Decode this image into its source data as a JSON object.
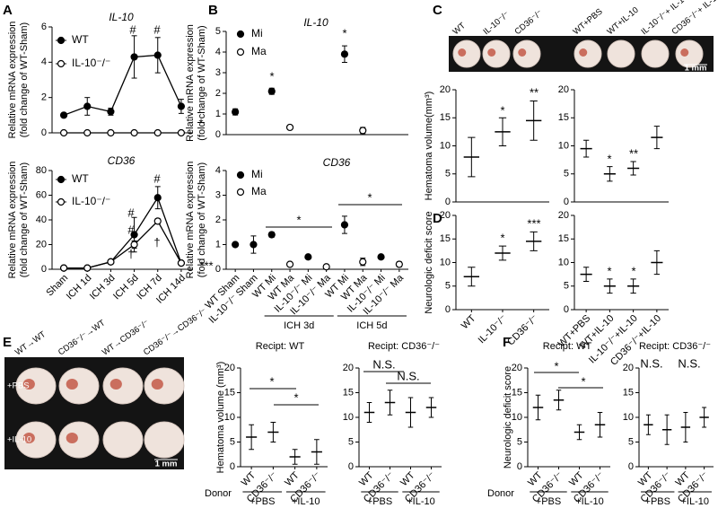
{
  "panels": [
    "A",
    "B",
    "C",
    "D",
    "E",
    "F"
  ],
  "images": [
    {
      "labels": [
        "WT",
        "IL-10⁻/⁻",
        "CD36⁻/⁻",
        "WT+PBS",
        "WT+IL-10",
        "IL-10⁻/⁻+ IL-10",
        "CD36⁻/⁻+ IL-10"
      ],
      "scale": "1 mm"
    },
    {
      "labels": [
        "WT→WT",
        "CD36⁻/⁻→WT",
        "WT→CD36⁻/⁻",
        "CD36⁻/⁻→CD36⁻/⁻"
      ],
      "rows": [
        "+PBS",
        "+IL-10"
      ],
      "scale": "1 mm"
    }
  ],
  "chart_data": [
    {
      "type": "line",
      "title": "IL-10",
      "ylabel": [
        "Relative mRNA expression",
        "(fold change of WT-Sham)"
      ],
      "categories": [
        null,
        null,
        null,
        null,
        null,
        null
      ],
      "ylim": [
        0,
        6
      ],
      "yticks": [
        0,
        2,
        4,
        6
      ],
      "legend": true,
      "series": [
        {
          "name": "WT",
          "marker": "filled",
          "color": "#000000",
          "values": [
            1,
            1.5,
            1.2,
            4.3,
            4.4,
            1.5
          ],
          "errors": [
            0.1,
            0.5,
            0.2,
            1.2,
            1.0,
            0.4
          ]
        },
        {
          "name": "IL-10⁻/⁻",
          "marker": "open",
          "color": "#000000",
          "values": [
            0,
            0,
            0,
            0,
            0,
            0
          ],
          "errors": [
            0,
            0,
            0,
            0,
            0,
            0
          ]
        }
      ],
      "annotations": [
        "#",
        "#",
        "*"
      ]
    },
    {
      "type": "line",
      "title": "CD36",
      "ylabel": [
        "Relative mRNA expression",
        "(fold change of WT-Sham)"
      ],
      "categories": [
        "Sham",
        "ICH 1d",
        "ICH 3d",
        "ICH 5d",
        "ICH 7d",
        "ICH 14d"
      ],
      "ylim": [
        0,
        80
      ],
      "yticks": [
        0,
        20,
        40,
        60,
        80
      ],
      "legend": true,
      "series": [
        {
          "name": "WT",
          "marker": "filled",
          "color": "#000000",
          "values": [
            1,
            1,
            6,
            28,
            58,
            5
          ],
          "errors": [
            0.3,
            0.5,
            1,
            14,
            9,
            1
          ]
        },
        {
          "name": "IL-10⁻/⁻",
          "marker": "open",
          "color": "#000000",
          "values": [
            1,
            1,
            6,
            20,
            39,
            5
          ],
          "errors": [
            0.3,
            0.3,
            1,
            3,
            2,
            1
          ]
        }
      ],
      "annotations": [
        "#",
        "#",
        "#",
        "†",
        "†",
        "***"
      ]
    },
    {
      "type": "dot",
      "title": "IL-10",
      "ylabel": [
        "Relative mRNA expression",
        "(fold change of WT-Sham)"
      ],
      "categories": [
        null,
        null,
        null,
        null,
        null,
        null,
        null,
        null,
        null,
        null
      ],
      "ylim": [
        0,
        5
      ],
      "yticks": [
        0,
        1,
        2,
        3,
        4,
        5
      ],
      "legend": true,
      "series": [
        {
          "name": "Mi",
          "marker": "filled",
          "color": "#000000",
          "values": [
            1.1,
            null,
            2.1,
            null,
            null,
            null,
            3.9,
            null,
            null,
            null
          ],
          "errors": [
            0.15,
            null,
            0.15,
            null,
            null,
            null,
            0.4,
            null,
            null,
            null
          ]
        },
        {
          "name": "Ma",
          "marker": "open",
          "color": "#000000",
          "values": [
            null,
            null,
            null,
            0.35,
            null,
            null,
            null,
            0.2,
            null,
            null
          ],
          "errors": [
            null,
            null,
            null,
            0.05,
            null,
            null,
            null,
            0.15,
            null,
            null
          ]
        }
      ],
      "annotations": [
        "*",
        "*"
      ]
    },
    {
      "type": "dot",
      "title": "CD36",
      "ylabel": [
        "Relative mRNA expression",
        "(fold change of WT-Sham)"
      ],
      "categories": [
        "WT Sham",
        "IL-10⁻/⁻ Sham",
        "WT Mi",
        "WT Ma",
        "IL-10⁻/⁻ Mi",
        "IL-10⁻/⁻ Ma",
        "WT Mi",
        "WT Ma",
        "IL-10⁻/⁻ Mi",
        "IL-10⁻/⁻ Ma"
      ],
      "groups": [
        "ICH 3d",
        "ICH 5d"
      ],
      "ylim": [
        0,
        4
      ],
      "yticks": [
        0,
        1,
        2,
        3,
        4
      ],
      "legend": true,
      "series": [
        {
          "name": "Mi",
          "marker": "filled",
          "color": "#000000",
          "values": [
            1.0,
            1.0,
            1.4,
            null,
            0.5,
            null,
            1.8,
            null,
            0.5,
            null
          ],
          "errors": [
            0.05,
            0.35,
            0.1,
            null,
            0.05,
            null,
            0.35,
            null,
            0.05,
            null
          ]
        },
        {
          "name": "Ma",
          "marker": "open",
          "color": "#000000",
          "values": [
            null,
            null,
            null,
            0.2,
            null,
            0.1,
            null,
            0.3,
            null,
            0.2
          ],
          "errors": [
            null,
            null,
            null,
            0.05,
            null,
            0.05,
            null,
            0.15,
            null,
            0.1
          ]
        }
      ],
      "annotations": [
        "*",
        "*"
      ]
    },
    {
      "type": "dot",
      "ylabel": "Hematoma volume(mm³)",
      "categories": [
        null,
        null,
        null
      ],
      "ylim": [
        0,
        20
      ],
      "yticks": [
        0,
        5,
        10,
        15,
        20
      ],
      "series": [
        {
          "color": "#000000",
          "values": [
            8,
            12.5,
            14.5
          ],
          "errors": [
            3.5,
            2.5,
            3.5
          ]
        }
      ],
      "annotations": [
        "*",
        "**"
      ]
    },
    {
      "type": "dot",
      "categories": [
        null,
        null,
        null,
        null
      ],
      "ylim": [
        0,
        20
      ],
      "yticks": [
        0,
        5,
        10,
        15,
        20
      ],
      "series": [
        {
          "color": "#000000",
          "values": [
            9.5,
            5,
            6,
            11.5
          ],
          "errors": [
            1.5,
            1.3,
            1.2,
            2
          ]
        }
      ],
      "annotations": [
        "*",
        "**"
      ]
    },
    {
      "type": "dot",
      "ylabel": "Neurologic deficit score",
      "categories": [
        "WT",
        "IL-10⁻/⁻",
        "CD36⁻/⁻"
      ],
      "ylim": [
        0,
        20
      ],
      "yticks": [
        0,
        5,
        10,
        15,
        20
      ],
      "series": [
        {
          "color": "#000000",
          "values": [
            7,
            12,
            14.5
          ],
          "errors": [
            2,
            1.5,
            2
          ]
        }
      ],
      "annotations": [
        "*",
        "***"
      ]
    },
    {
      "type": "dot",
      "categories": [
        "WT+PBS",
        "WT+IL-10",
        "IL-10⁻/⁻+IL-10",
        "CD36⁻/⁻+IL-10"
      ],
      "ylim": [
        0,
        20
      ],
      "yticks": [
        0,
        5,
        10,
        15,
        20
      ],
      "series": [
        {
          "color": "#000000",
          "values": [
            7.5,
            5,
            5,
            10
          ],
          "errors": [
            1.5,
            1.5,
            1.5,
            2.5
          ]
        }
      ],
      "annotations": [
        "*",
        "*"
      ]
    },
    {
      "type": "dot",
      "title": "Recipt: WT",
      "ylabel": "Hematoma volume (mm³)",
      "xlabel": "Donor",
      "categories": [
        "WT",
        "CD36⁻/⁻",
        "WT",
        "CD36⁻/⁻"
      ],
      "groups": [
        "+PBS",
        "+IL-10"
      ],
      "ylim": [
        0,
        20
      ],
      "yticks": [
        0,
        5,
        10,
        15,
        20
      ],
      "series": [
        {
          "color": "#000000",
          "values": [
            6,
            7,
            2,
            3
          ],
          "errors": [
            2.5,
            2,
            1.5,
            2.5
          ]
        }
      ],
      "annotations": [
        "*",
        "*"
      ]
    },
    {
      "type": "dot",
      "title": "Recipt: CD36⁻/⁻",
      "categories": [
        "WT",
        "CD36⁻/⁻",
        "WT",
        "CD36⁻/⁻"
      ],
      "groups": [
        "+PBS",
        "+IL-10"
      ],
      "ylim": [
        0,
        20
      ],
      "yticks": [
        0,
        5,
        10,
        15,
        20
      ],
      "series": [
        {
          "color": "#000000",
          "values": [
            11,
            13,
            11,
            12
          ],
          "errors": [
            2,
            2.5,
            3,
            2
          ]
        }
      ],
      "annotations": [
        "N.S.",
        "N.S."
      ]
    },
    {
      "type": "dot",
      "title": "Recipt: WT",
      "ylabel": "Neurologic deficit score",
      "xlabel": "Donor",
      "categories": [
        "WT",
        "CD36⁻/⁻",
        "WT",
        "CD36⁻/⁻"
      ],
      "groups": [
        "+PBS",
        "+IL-10"
      ],
      "ylim": [
        0,
        20
      ],
      "yticks": [
        0,
        5,
        10,
        15,
        20
      ],
      "series": [
        {
          "color": "#000000",
          "values": [
            12,
            13.5,
            7,
            8.5
          ],
          "errors": [
            2.5,
            2,
            1.5,
            2.5
          ]
        }
      ],
      "annotations": [
        "*",
        "*"
      ]
    },
    {
      "type": "dot",
      "title": "Recipt: CD36⁻/⁻",
      "categories": [
        "WT",
        "CD36⁻/⁻",
        "WT",
        "CD36⁻/⁻"
      ],
      "groups": [
        "+PBS",
        "+IL-10"
      ],
      "ylim": [
        0,
        20
      ],
      "yticks": [
        0,
        5,
        10,
        15,
        20
      ],
      "series": [
        {
          "color": "#000000",
          "values": [
            8.5,
            7.5,
            8,
            10
          ],
          "errors": [
            2,
            3,
            3,
            2
          ]
        }
      ],
      "annotations": [
        "N.S.",
        "N.S."
      ]
    }
  ]
}
